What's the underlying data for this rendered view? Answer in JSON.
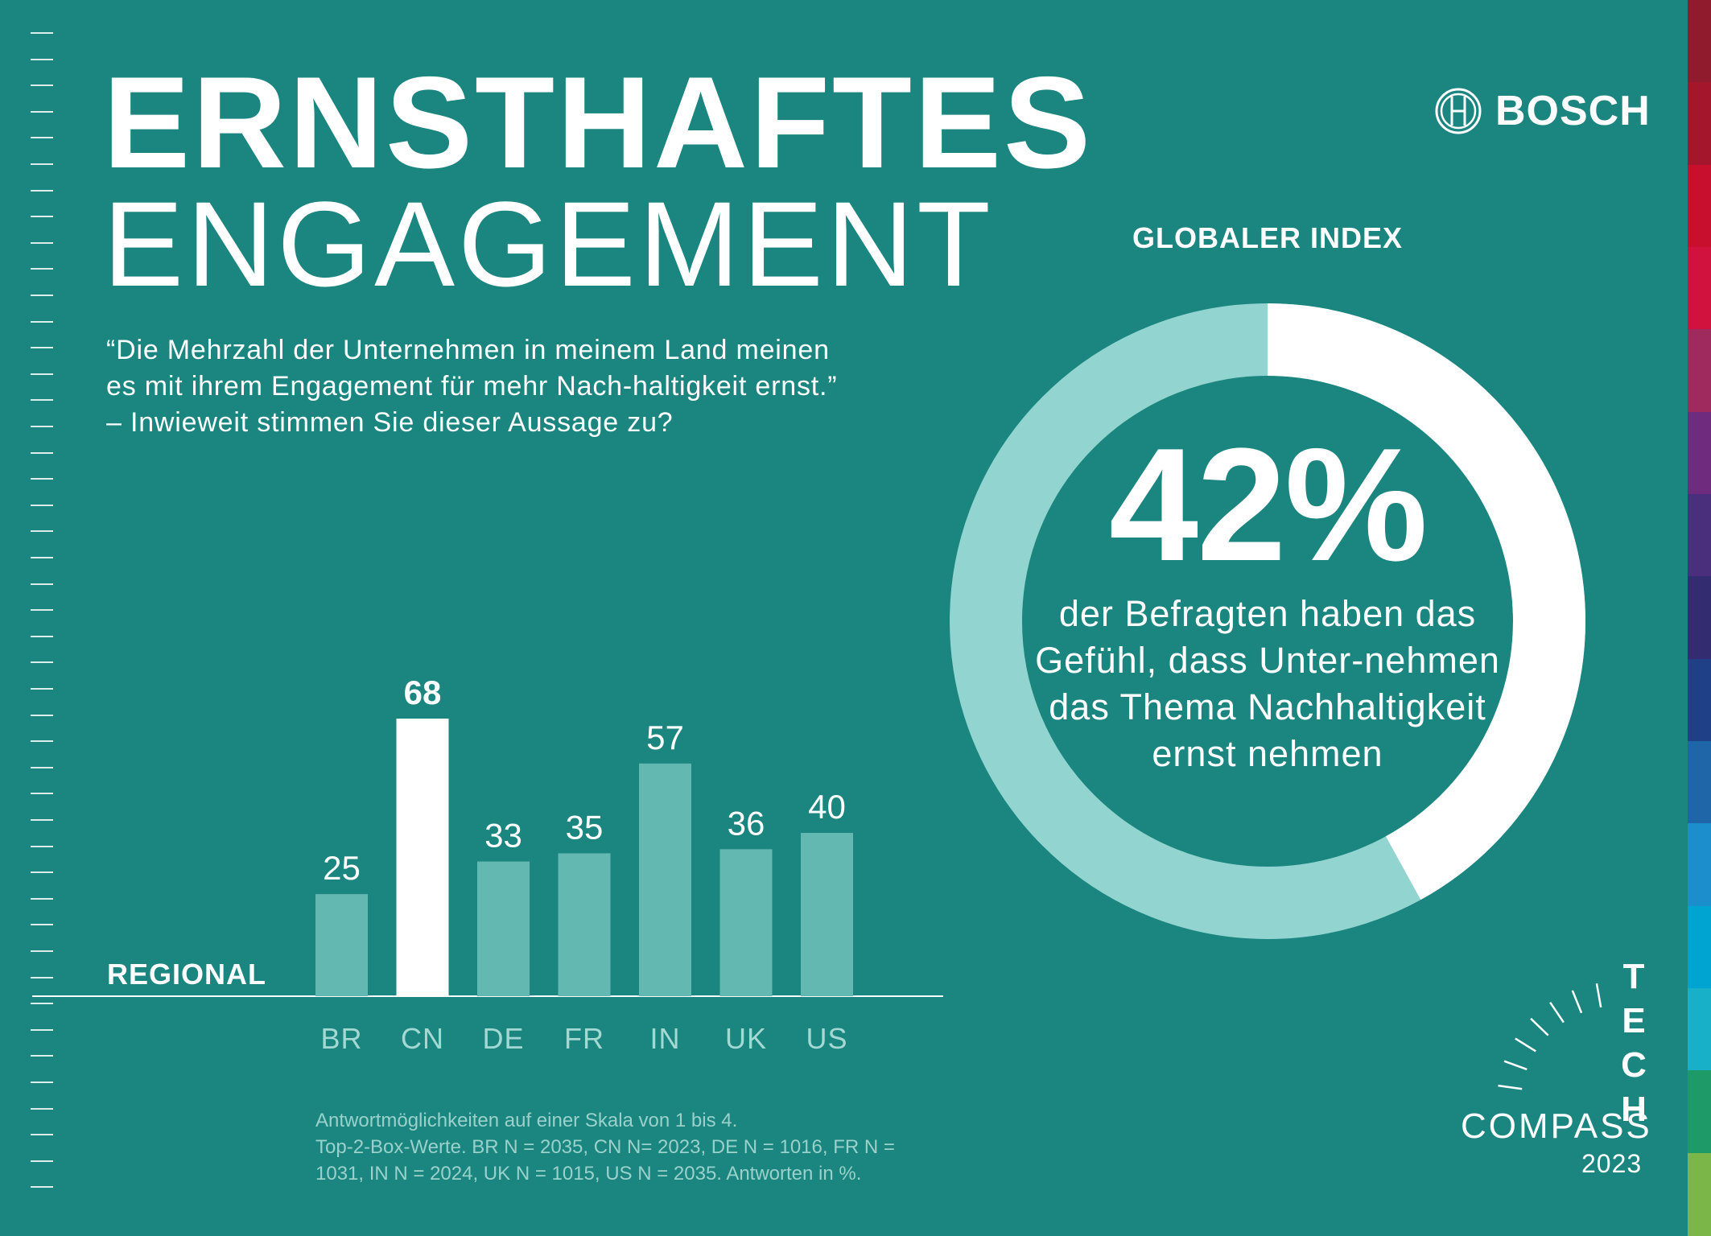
{
  "header": {
    "title_line1": "ERNSTHAFTES",
    "title_line2": "ENGAGEMENT",
    "question": "“Die Mehrzahl der Unternehmen in meinem Land meinen es mit ihrem Engagement für mehr Nach-haltigkeit ernst.” – Inwieweit stimmen Sie dieser Aussage zu?"
  },
  "brand": {
    "name": "BOSCH"
  },
  "global_index": {
    "label": "GLOBALER INDEX",
    "value_text": "42%",
    "value": 42,
    "description": "der Befragten haben das Gefühl, dass Unter-nehmen das Thema Nachhaltigkeit ernst nehmen",
    "colors": {
      "value": "#ffffff",
      "rest": "#92d4cf"
    }
  },
  "chart_data": [
    {
      "type": "pie",
      "title": "GLOBALER INDEX",
      "slices": [
        {
          "value": 42,
          "color": "#ffffff"
        },
        {
          "value": 58,
          "color": "#92d4cf"
        }
      ]
    },
    {
      "type": "bar",
      "title": "REGIONAL",
      "categories": [
        "BR",
        "CN",
        "DE",
        "FR",
        "IN",
        "UK",
        "US"
      ],
      "values": [
        25,
        68,
        33,
        35,
        57,
        36,
        40
      ],
      "highlight": "CN",
      "ylim": [
        0,
        68
      ],
      "grid": false,
      "colors": {
        "default": "#63b9b1",
        "highlight": "#ffffff"
      }
    }
  ],
  "footnote": {
    "line1": "Antwortmöglichkeiten auf einer Skala von 1 bis 4.",
    "line2": "Top-2-Box-Werte. BR N = 2035, CN N= 2023, DE N = 1016, FR N =",
    "line3": "1031, IN N = 2024, UK N = 1015, US N = 2035. Antworten in %."
  },
  "tech_compass": {
    "letters": [
      "T",
      "E",
      "C",
      "H"
    ],
    "word": "COMPASS",
    "year": "2023"
  },
  "colors": {
    "background": "#1b8580",
    "bar": "#63b9b1",
    "bar_highlight": "#ffffff",
    "donut_rest": "#92d4cf",
    "footnote": "#9ad1cb"
  }
}
